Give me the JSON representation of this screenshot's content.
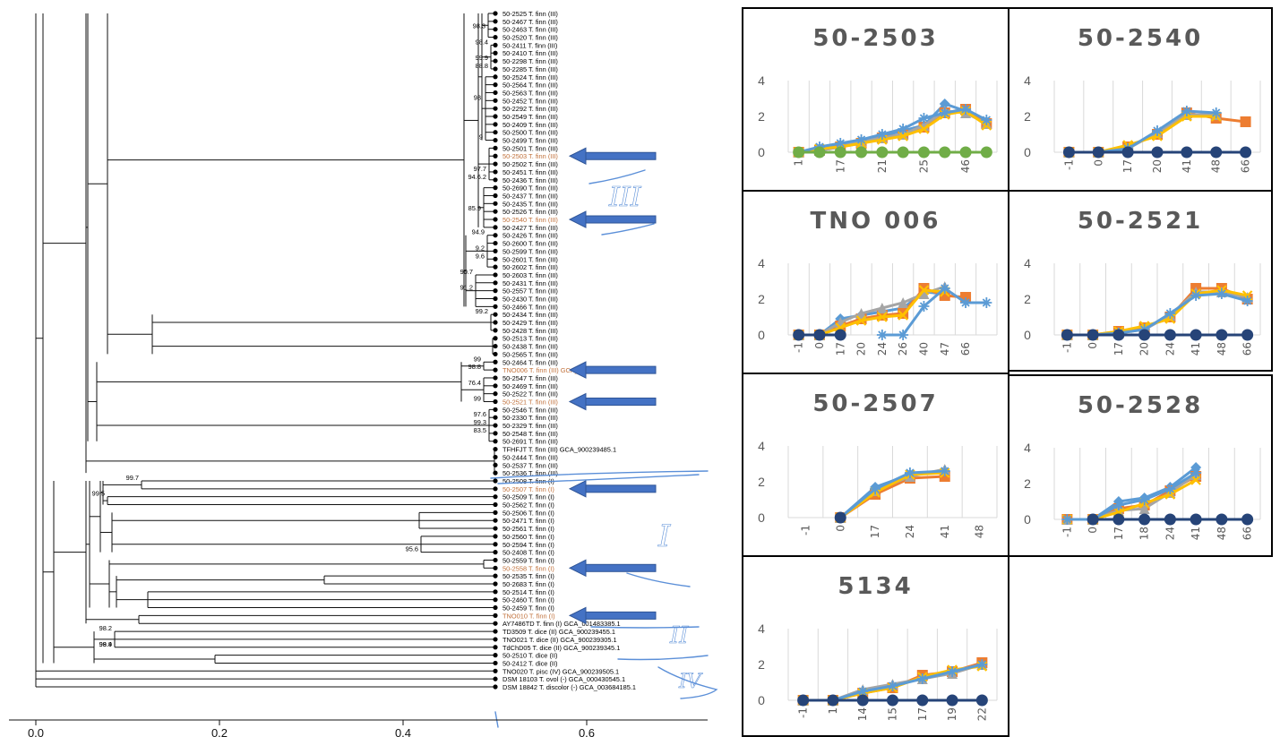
{
  "tree": {
    "axis_ticks": [
      "0.0",
      "0.2",
      "0.4",
      "0.6"
    ],
    "leaves": [
      "50-2525 T. finn (III)",
      "50-2467 T. finn (III)",
      "50-2463 T. finn (III)",
      "50-2520 T. finn (III)",
      "50-2411 T. finn (III)",
      "50-2410 T. finn (III)",
      "50-2298 T. finn (III)",
      "50-2285 T. finn (III)",
      "50-2524 T. finn (III)",
      "50-2564 T. finn (III)",
      "50-2563 T. finn (III)",
      "50-2452 T. finn (III)",
      "50-2292 T. finn (III)",
      "50-2549 T. finn (III)",
      "50-2409 T. finn (III)",
      "50-2500 T. finn (III)",
      "50-2499 T. finn (III)",
      "50-2501 T. finn (III)",
      "50-2503 T. finn (III)",
      "50-2502 T. finn (III)",
      "50-2451 T. finn (III)",
      "50-2436 T. finn (III)",
      "50-2690 T. finn (III)",
      "50-2437 T. finn (III)",
      "50-2435 T. finn (III)",
      "50-2526 T. finn (III)",
      "50-2540 T. finn (III)",
      "50-2427 T. finn (III)",
      "50-2426 T. finn (III)",
      "50-2600 T. finn (III)",
      "50-2599 T. finn (III)",
      "50-2601 T. finn (III)",
      "50-2602 T. finn (III)",
      "50-2603 T. finn (III)",
      "50-2431 T. finn (III)",
      "50-2557 T. finn (III)",
      "50-2430 T. finn (III)",
      "50-2466 T. finn (III)",
      "50-2434 T. finn (III)",
      "50-2429 T. finn (III)",
      "50-2428 T. finn (III)",
      "50-2513 T. finn (III)",
      "50-2438 T. finn (III)",
      "50-2565 T. finn (III)",
      "50-2464 T. finn (III)",
      "TNO006 T. finn (III) GCA_900239185.1",
      "50-2547 T. finn (III)",
      "50-2469 T. finn (III)",
      "50-2522 T. finn (III)",
      "50-2521 T. finn (III)",
      "50-2546 T. finn (III)",
      "50-2330 T. finn (III)",
      "50-2329 T. finn (III)",
      "50-2548 T. finn (III)",
      "50-2691 T. finn (III)",
      "TFHFJT T. finn (III) GCA_900239485.1",
      "50-2444 T. finn (III)",
      "50-2537 T. finn (III)",
      "50-2536 T. finn (III)",
      "50-2508 T. finn (I)",
      "50-2507 T. finn (I)",
      "50-2509 T. finn (I)",
      "50-2562 T. finn (I)",
      "50-2506 T. finn (I)",
      "50-2471 T. finn (I)",
      "50-2561 T. finn (I)",
      "50-2560 T. finn (I)",
      "50-2594 T. finn (I)",
      "50-2408 T. finn (I)",
      "50-2559 T. finn (I)",
      "50-2558 T. finn (I)",
      "50-2535 T. finn (I)",
      "50-2683 T. finn (I)",
      "50-2514 T. finn (I)",
      "50-2460 T. finn (I)",
      "50-2459 T. finn (I)",
      "TNO010 T. finn (I)",
      "AY7486TD T. finn (I) GCA_001483385.1",
      "TD3509 T. dice (II) GCA_900239455.1",
      "TNO021 T. dice (II) GCA_900239305.1",
      "TdChD05 T. dice (II) GCA_900239345.1",
      "50-2510 T. dice (II)",
      "50-2412 T. dice (II)",
      "TNO020 T. pisc (IV) GCA_900239505.1",
      "DSM 18103 T. ovol (-) GCA_000430545.1",
      "DSM 18842 T. discolor (-) GCA_003684185.1"
    ],
    "highlighted_leaves": [
      18,
      26,
      45,
      49,
      60,
      70,
      76
    ],
    "bootstrap": [
      {
        "text": "98.3",
        "leaf": 2
      },
      {
        "text": "98.4",
        "leaf": 4
      },
      {
        "text": "99.9",
        "leaf": 6
      },
      {
        "text": "88.8",
        "leaf": 7
      },
      {
        "text": "98.",
        "leaf": 11
      },
      {
        "text": "9",
        "leaf": 16
      },
      {
        "text": "97.7",
        "leaf": 20
      },
      {
        "text": "94.6.2",
        "leaf": 21
      },
      {
        "text": "85.9",
        "leaf": 25
      },
      {
        "text": "94.9",
        "leaf": 28
      },
      {
        "text": "9.2",
        "leaf": 30
      },
      {
        "text": "9.6",
        "leaf": 31
      },
      {
        "text": "90.7",
        "leaf": 33
      },
      {
        "text": "91.2",
        "leaf": 35
      },
      {
        "text": "99.2",
        "leaf": 38
      },
      {
        "text": "99",
        "leaf": 44
      },
      {
        "text": "98.8",
        "leaf": 45
      },
      {
        "text": "76.4",
        "leaf": 47
      },
      {
        "text": "99",
        "leaf": 49
      },
      {
        "text": "97.6",
        "leaf": 51
      },
      {
        "text": "99.3",
        "leaf": 52
      },
      {
        "text": "83.5",
        "leaf": 53
      },
      {
        "text": "99.7",
        "leaf": 59
      },
      {
        "text": "99.5",
        "leaf": 61
      },
      {
        "text": "95.6",
        "leaf": 68
      },
      {
        "text": "99.9",
        "leaf": 80
      },
      {
        "text": "98.2",
        "leaf": 78
      },
      {
        "text": "98.4",
        "leaf": 80
      }
    ],
    "annotations": [
      "III",
      "I",
      "II",
      "IV"
    ]
  },
  "colors": {
    "blue": "#5B9BD5",
    "orange": "#ED7D31",
    "gray": "#A5A5A5",
    "yellow": "#FFC000",
    "navy": "#264478",
    "green": "#70AD47",
    "arrow": "#4472C4",
    "grid": "#D9D9D9",
    "axis_text": "#595959"
  },
  "panels": [
    {
      "title": "50-2503",
      "chart_data": {
        "type": "line",
        "categories": [
          "1",
          "",
          "17",
          "",
          "21",
          "",
          "25",
          "",
          "46",
          ""
        ],
        "ylim": [
          0,
          4
        ],
        "yticks": [
          "0",
          "2",
          "4"
        ],
        "series": [
          {
            "color": "blue",
            "marker": "diamond",
            "values": [
              0,
              0.2,
              0.4,
              0.6,
              0.9,
              1.2,
              1.5,
              2.7,
              2.3,
              1.7
            ]
          },
          {
            "color": "orange",
            "marker": "square",
            "values": [
              0,
              0.1,
              0.3,
              0.5,
              0.8,
              1.0,
              1.4,
              2.2,
              2.4,
              1.6
            ]
          },
          {
            "color": "gray",
            "marker": "triangle",
            "values": [
              0,
              0.1,
              0.3,
              0.6,
              0.8,
              1.0,
              1.5,
              2.3,
              2.2,
              1.6
            ]
          },
          {
            "color": "yellow",
            "marker": "x",
            "values": [
              0,
              0.2,
              0.3,
              0.5,
              0.7,
              0.9,
              1.3,
              2.1,
              2.3,
              1.5
            ]
          },
          {
            "color": "blue",
            "marker": "star",
            "values": [
              0,
              0.3,
              0.5,
              0.7,
              1.0,
              1.3,
              1.9,
              2.2,
              2.4,
              1.8
            ]
          },
          {
            "color": "green",
            "marker": "circle",
            "values": [
              0,
              0,
              0,
              0,
              0,
              0,
              0,
              0,
              0,
              0
            ]
          }
        ]
      }
    },
    {
      "title": "50-2540",
      "chart_data": {
        "type": "line",
        "categories": [
          "-1",
          "0",
          "17",
          "20",
          "41",
          "48",
          "66"
        ],
        "ylim": [
          0,
          4
        ],
        "yticks": [
          "0",
          "2",
          "4"
        ],
        "series": [
          {
            "color": "orange",
            "marker": "square",
            "values": [
              0,
              0,
              0.3,
              1.0,
              2.2,
              1.9,
              1.7
            ]
          },
          {
            "color": "gray",
            "marker": "triangle",
            "values": [
              0,
              0,
              0.2,
              1.1,
              2.1,
              2.1,
              null
            ]
          },
          {
            "color": "yellow",
            "marker": "x",
            "values": [
              0,
              0,
              0.4,
              0.9,
              2.0,
              2.0,
              null
            ]
          },
          {
            "color": "blue",
            "marker": "star",
            "values": [
              0,
              0,
              0.2,
              1.2,
              2.3,
              2.2,
              null
            ]
          },
          {
            "color": "navy",
            "marker": "circle",
            "values": [
              0,
              0,
              0,
              0,
              0,
              0,
              0
            ]
          }
        ]
      }
    },
    {
      "title": "TNO 006",
      "chart_data": {
        "type": "line",
        "categories": [
          "-1",
          "0",
          "17",
          "20",
          "24",
          "26",
          "40",
          "47",
          "66",
          ""
        ],
        "ylim": [
          0,
          4
        ],
        "yticks": [
          "0",
          "2",
          "4"
        ],
        "series": [
          {
            "color": "blue",
            "marker": "diamond",
            "values": [
              0,
              0,
              0.9,
              1.1,
              1.3,
              1.5,
              2.4,
              2.3,
              null,
              null
            ]
          },
          {
            "color": "orange",
            "marker": "square",
            "values": [
              0,
              0,
              0.5,
              0.9,
              1.1,
              1.2,
              2.6,
              2.2,
              2.1,
              null
            ]
          },
          {
            "color": "gray",
            "marker": "triangle",
            "values": [
              0,
              0,
              0.7,
              1.2,
              1.5,
              1.8,
              2.3,
              2.7,
              null,
              null
            ]
          },
          {
            "color": "yellow",
            "marker": "x",
            "values": [
              0,
              0,
              0.4,
              0.8,
              1.0,
              1.1,
              2.5,
              2.4,
              null,
              null
            ]
          },
          {
            "color": "blue",
            "marker": "star",
            "values": [
              null,
              null,
              null,
              null,
              0,
              0,
              1.6,
              2.6,
              1.8,
              1.8
            ]
          },
          {
            "color": "navy",
            "marker": "circle",
            "values": [
              0,
              0,
              0,
              null,
              null,
              null,
              null,
              null,
              null,
              null
            ]
          }
        ]
      }
    },
    {
      "title": "50-2521",
      "chart_data": {
        "type": "line",
        "categories": [
          "-1",
          "0",
          "17",
          "20",
          "24",
          "41",
          "48",
          "66"
        ],
        "ylim": [
          0,
          4
        ],
        "yticks": [
          "0",
          "2",
          "4"
        ],
        "series": [
          {
            "color": "orange",
            "marker": "square",
            "values": [
              0,
              0,
              0.2,
              0.4,
              1.0,
              2.6,
              2.6,
              2.0
            ]
          },
          {
            "color": "gray",
            "marker": "triangle",
            "values": [
              0,
              0,
              0.1,
              0.3,
              1.1,
              2.4,
              2.4,
              2.1
            ]
          },
          {
            "color": "yellow",
            "marker": "x",
            "values": [
              0,
              0,
              0.2,
              0.5,
              0.9,
              2.3,
              2.5,
              2.2
            ]
          },
          {
            "color": "blue",
            "marker": "star",
            "values": [
              0,
              0,
              0.1,
              0.3,
              1.2,
              2.2,
              2.3,
              1.9
            ]
          },
          {
            "color": "navy",
            "marker": "circle",
            "values": [
              0,
              0,
              0,
              0,
              0,
              0,
              0,
              0
            ]
          }
        ]
      }
    },
    {
      "title": "50-2507",
      "chart_data": {
        "type": "line",
        "categories": [
          "-1",
          "0",
          "17",
          "24",
          "41",
          "48"
        ],
        "ylim": [
          0,
          4
        ],
        "yticks": [
          "0",
          "2",
          "4"
        ],
        "series": [
          {
            "color": "blue",
            "marker": "diamond",
            "values": [
              null,
              0,
              1.7,
              2.4,
              2.6,
              null
            ]
          },
          {
            "color": "orange",
            "marker": "square",
            "values": [
              null,
              0,
              1.3,
              2.2,
              2.3,
              null
            ]
          },
          {
            "color": "gray",
            "marker": "triangle",
            "values": [
              null,
              0,
              1.5,
              2.3,
              2.7,
              null
            ]
          },
          {
            "color": "yellow",
            "marker": "x",
            "values": [
              null,
              0,
              1.4,
              2.4,
              2.5,
              null
            ]
          },
          {
            "color": "blue",
            "marker": "star",
            "values": [
              null,
              0,
              1.6,
              2.5,
              2.6,
              null
            ]
          },
          {
            "color": "navy",
            "marker": "circle",
            "values": [
              null,
              0,
              null,
              null,
              null,
              null
            ]
          }
        ]
      }
    },
    {
      "title": "50-2528",
      "chart_data": {
        "type": "line",
        "categories": [
          "-1",
          "0",
          "17",
          "18",
          "24",
          "41",
          "48",
          "66"
        ],
        "ylim": [
          0,
          4
        ],
        "yticks": [
          "0",
          "2",
          "4"
        ],
        "series": [
          {
            "color": "blue",
            "marker": "diamond",
            "values": [
              0,
              0,
              1.0,
              1.2,
              1.8,
              2.9,
              null,
              null
            ]
          },
          {
            "color": "orange",
            "marker": "square",
            "values": [
              0,
              0,
              0.6,
              0.8,
              1.6,
              2.4,
              null,
              null
            ]
          },
          {
            "color": "gray",
            "marker": "triangle",
            "values": [
              0,
              0,
              0.5,
              0.6,
              1.5,
              2.5,
              null,
              null
            ]
          },
          {
            "color": "yellow",
            "marker": "x",
            "values": [
              0,
              0,
              0.4,
              0.9,
              1.4,
              2.2,
              null,
              null
            ]
          },
          {
            "color": "blue",
            "marker": "star",
            "values": [
              0,
              0,
              0.8,
              1.1,
              1.7,
              2.6,
              null,
              null
            ]
          },
          {
            "color": "navy",
            "marker": "circle",
            "values": [
              null,
              0,
              0,
              0,
              0,
              0,
              0,
              0
            ]
          }
        ]
      }
    },
    {
      "title": "5134",
      "chart_data": {
        "type": "line",
        "categories": [
          "-1",
          "1",
          "14",
          "15",
          "17",
          "19",
          "22"
        ],
        "ylim": [
          0,
          4
        ],
        "yticks": [
          "0",
          "2",
          "4"
        ],
        "series": [
          {
            "color": "blue",
            "marker": "diamond",
            "values": [
              0,
              0,
              0.5,
              0.8,
              1.3,
              1.6,
              2.0
            ]
          },
          {
            "color": "orange",
            "marker": "square",
            "values": [
              0,
              0,
              0.4,
              0.7,
              1.4,
              1.6,
              2.1
            ]
          },
          {
            "color": "gray",
            "marker": "triangle",
            "values": [
              0,
              0,
              0.6,
              0.9,
              1.2,
              1.5,
              2.0
            ]
          },
          {
            "color": "yellow",
            "marker": "x",
            "values": [
              0,
              0,
              0.4,
              0.7,
              1.3,
              1.7,
              1.9
            ]
          },
          {
            "color": "blue",
            "marker": "star",
            "values": [
              0,
              0,
              0.5,
              0.8,
              1.2,
              1.6,
              2.0
            ]
          },
          {
            "color": "navy",
            "marker": "circle",
            "values": [
              0,
              0,
              0,
              0,
              0,
              0,
              0
            ]
          }
        ]
      }
    }
  ]
}
